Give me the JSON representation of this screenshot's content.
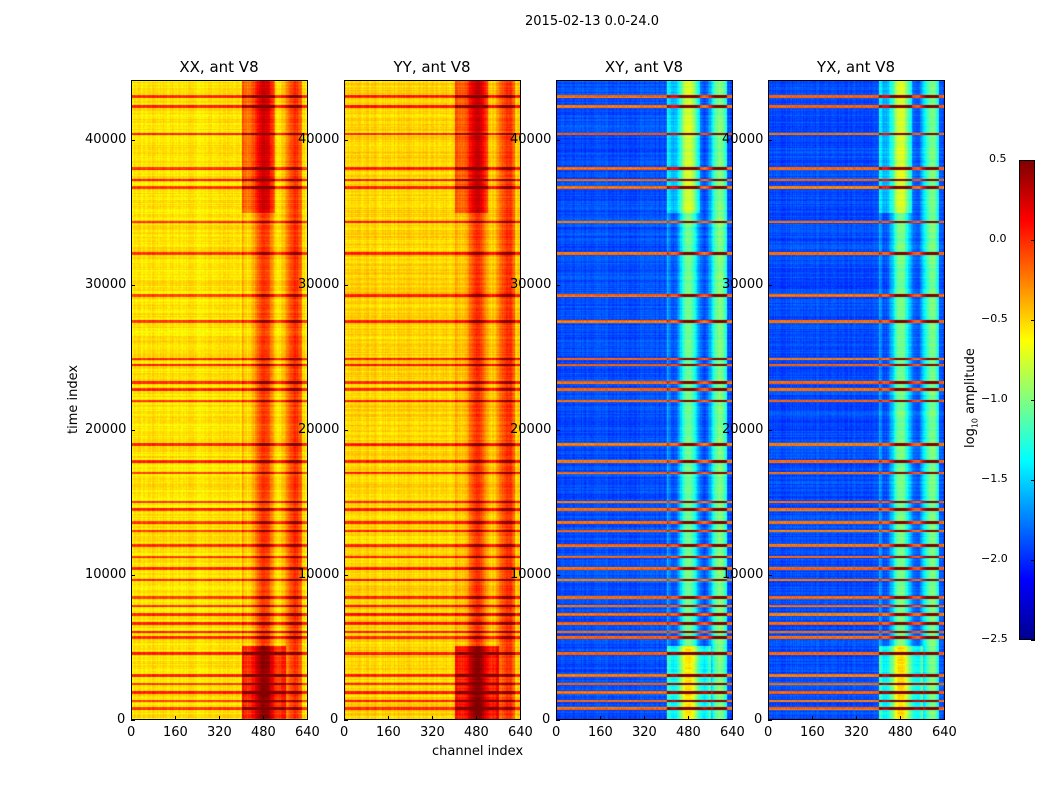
{
  "chart_data": {
    "type": "heatmap",
    "suptitle": "2015-02-13 0.0-24.0",
    "xlabel": "channel index",
    "ylabel": "time index",
    "xlim": [
      0,
      640
    ],
    "ylim": [
      0,
      44138
    ],
    "xticks": [
      "0",
      "160",
      "320",
      "480",
      "640"
    ],
    "yticks": [
      "0",
      "10000",
      "20000",
      "30000",
      "40000"
    ],
    "colorbar": {
      "label_main": "log",
      "label_sub": "10",
      "label_rest": " amplitude",
      "range": [
        -2.5,
        0.5
      ],
      "ticks": [
        "0.5",
        "0.0",
        "−0.5",
        "−1.0",
        "−1.5",
        "−2.0",
        "−2.5"
      ],
      "colormap": "jet"
    },
    "panels": [
      {
        "title": "XX, ant V8",
        "base": -0.55,
        "band": 0.55,
        "band_channels": [
          400,
          620
        ]
      },
      {
        "title": "YY, ant V8",
        "base": -0.5,
        "band": 0.5,
        "band_channels": [
          400,
          620
        ]
      },
      {
        "title": "XY, ant V8",
        "base": -1.9,
        "band": 0.9,
        "band_channels": [
          400,
          620
        ]
      },
      {
        "title": "YX, ant V8",
        "base": -1.9,
        "band": 0.9,
        "band_channels": [
          400,
          620
        ]
      }
    ],
    "rfi_time_indices": [
      700,
      1200,
      1800,
      2400,
      3000,
      4500,
      5600,
      6000,
      6600,
      7200,
      7800,
      8400,
      9600,
      10400,
      11200,
      12000,
      13000,
      13600,
      14500,
      15000,
      17000,
      17800,
      19000,
      22000,
      22800,
      23300,
      24500,
      24900,
      27500,
      29300,
      32200,
      34400,
      36800,
      37300,
      38100,
      40500,
      42400,
      43100
    ]
  }
}
